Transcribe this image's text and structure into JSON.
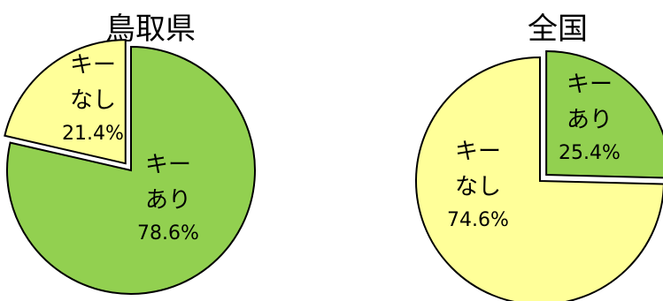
{
  "chart_data": [
    {
      "type": "pie",
      "title": "鳥取県",
      "slices": [
        {
          "label": "キー\nあり",
          "value": 78.6,
          "value_label": "78.6%",
          "color": "#92D050",
          "exploded": false
        },
        {
          "label": "キー\nなし",
          "value": 21.4,
          "value_label": "21.4%",
          "color": "#FFFF99",
          "exploded": true
        }
      ]
    },
    {
      "type": "pie",
      "title": "全国",
      "slices": [
        {
          "label": "キー\nあり",
          "value": 25.4,
          "value_label": "25.4%",
          "color": "#92D050",
          "exploded": true
        },
        {
          "label": "キー\nなし",
          "value": 74.6,
          "value_label": "74.6%",
          "color": "#FFFF99",
          "exploded": false
        }
      ]
    }
  ]
}
